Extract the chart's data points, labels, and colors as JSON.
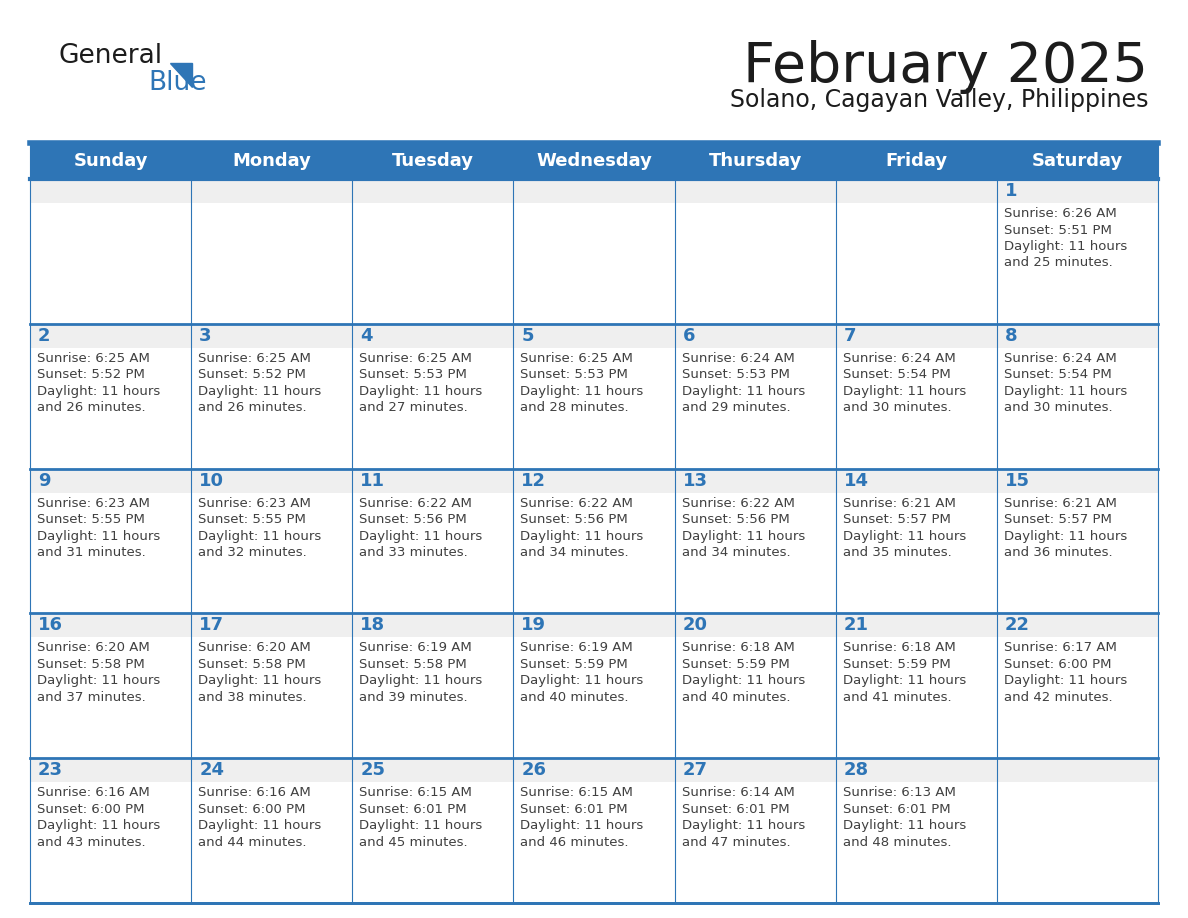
{
  "title": "February 2025",
  "subtitle": "Solano, Cagayan Valley, Philippines",
  "header_bg": "#2E75B6",
  "header_text_color": "#FFFFFF",
  "cell_bg_number": "#EFEFEF",
  "cell_bg_text": "#FFFFFF",
  "day_number_color": "#2E75B6",
  "text_color": "#404040",
  "line_color": "#2E75B6",
  "days_of_week": [
    "Sunday",
    "Monday",
    "Tuesday",
    "Wednesday",
    "Thursday",
    "Friday",
    "Saturday"
  ],
  "calendar_data": [
    [
      null,
      null,
      null,
      null,
      null,
      null,
      {
        "day": 1,
        "sunrise": "6:26 AM",
        "sunset": "5:51 PM",
        "daylight": "11 hours and 25 minutes."
      }
    ],
    [
      {
        "day": 2,
        "sunrise": "6:25 AM",
        "sunset": "5:52 PM",
        "daylight": "11 hours and 26 minutes."
      },
      {
        "day": 3,
        "sunrise": "6:25 AM",
        "sunset": "5:52 PM",
        "daylight": "11 hours and 26 minutes."
      },
      {
        "day": 4,
        "sunrise": "6:25 AM",
        "sunset": "5:53 PM",
        "daylight": "11 hours and 27 minutes."
      },
      {
        "day": 5,
        "sunrise": "6:25 AM",
        "sunset": "5:53 PM",
        "daylight": "11 hours and 28 minutes."
      },
      {
        "day": 6,
        "sunrise": "6:24 AM",
        "sunset": "5:53 PM",
        "daylight": "11 hours and 29 minutes."
      },
      {
        "day": 7,
        "sunrise": "6:24 AM",
        "sunset": "5:54 PM",
        "daylight": "11 hours and 30 minutes."
      },
      {
        "day": 8,
        "sunrise": "6:24 AM",
        "sunset": "5:54 PM",
        "daylight": "11 hours and 30 minutes."
      }
    ],
    [
      {
        "day": 9,
        "sunrise": "6:23 AM",
        "sunset": "5:55 PM",
        "daylight": "11 hours and 31 minutes."
      },
      {
        "day": 10,
        "sunrise": "6:23 AM",
        "sunset": "5:55 PM",
        "daylight": "11 hours and 32 minutes."
      },
      {
        "day": 11,
        "sunrise": "6:22 AM",
        "sunset": "5:56 PM",
        "daylight": "11 hours and 33 minutes."
      },
      {
        "day": 12,
        "sunrise": "6:22 AM",
        "sunset": "5:56 PM",
        "daylight": "11 hours and 34 minutes."
      },
      {
        "day": 13,
        "sunrise": "6:22 AM",
        "sunset": "5:56 PM",
        "daylight": "11 hours and 34 minutes."
      },
      {
        "day": 14,
        "sunrise": "6:21 AM",
        "sunset": "5:57 PM",
        "daylight": "11 hours and 35 minutes."
      },
      {
        "day": 15,
        "sunrise": "6:21 AM",
        "sunset": "5:57 PM",
        "daylight": "11 hours and 36 minutes."
      }
    ],
    [
      {
        "day": 16,
        "sunrise": "6:20 AM",
        "sunset": "5:58 PM",
        "daylight": "11 hours and 37 minutes."
      },
      {
        "day": 17,
        "sunrise": "6:20 AM",
        "sunset": "5:58 PM",
        "daylight": "11 hours and 38 minutes."
      },
      {
        "day": 18,
        "sunrise": "6:19 AM",
        "sunset": "5:58 PM",
        "daylight": "11 hours and 39 minutes."
      },
      {
        "day": 19,
        "sunrise": "6:19 AM",
        "sunset": "5:59 PM",
        "daylight": "11 hours and 40 minutes."
      },
      {
        "day": 20,
        "sunrise": "6:18 AM",
        "sunset": "5:59 PM",
        "daylight": "11 hours and 40 minutes."
      },
      {
        "day": 21,
        "sunrise": "6:18 AM",
        "sunset": "5:59 PM",
        "daylight": "11 hours and 41 minutes."
      },
      {
        "day": 22,
        "sunrise": "6:17 AM",
        "sunset": "6:00 PM",
        "daylight": "11 hours and 42 minutes."
      }
    ],
    [
      {
        "day": 23,
        "sunrise": "6:16 AM",
        "sunset": "6:00 PM",
        "daylight": "11 hours and 43 minutes."
      },
      {
        "day": 24,
        "sunrise": "6:16 AM",
        "sunset": "6:00 PM",
        "daylight": "11 hours and 44 minutes."
      },
      {
        "day": 25,
        "sunrise": "6:15 AM",
        "sunset": "6:01 PM",
        "daylight": "11 hours and 45 minutes."
      },
      {
        "day": 26,
        "sunrise": "6:15 AM",
        "sunset": "6:01 PM",
        "daylight": "11 hours and 46 minutes."
      },
      {
        "day": 27,
        "sunrise": "6:14 AM",
        "sunset": "6:01 PM",
        "daylight": "11 hours and 47 minutes."
      },
      {
        "day": 28,
        "sunrise": "6:13 AM",
        "sunset": "6:01 PM",
        "daylight": "11 hours and 48 minutes."
      },
      null
    ]
  ]
}
